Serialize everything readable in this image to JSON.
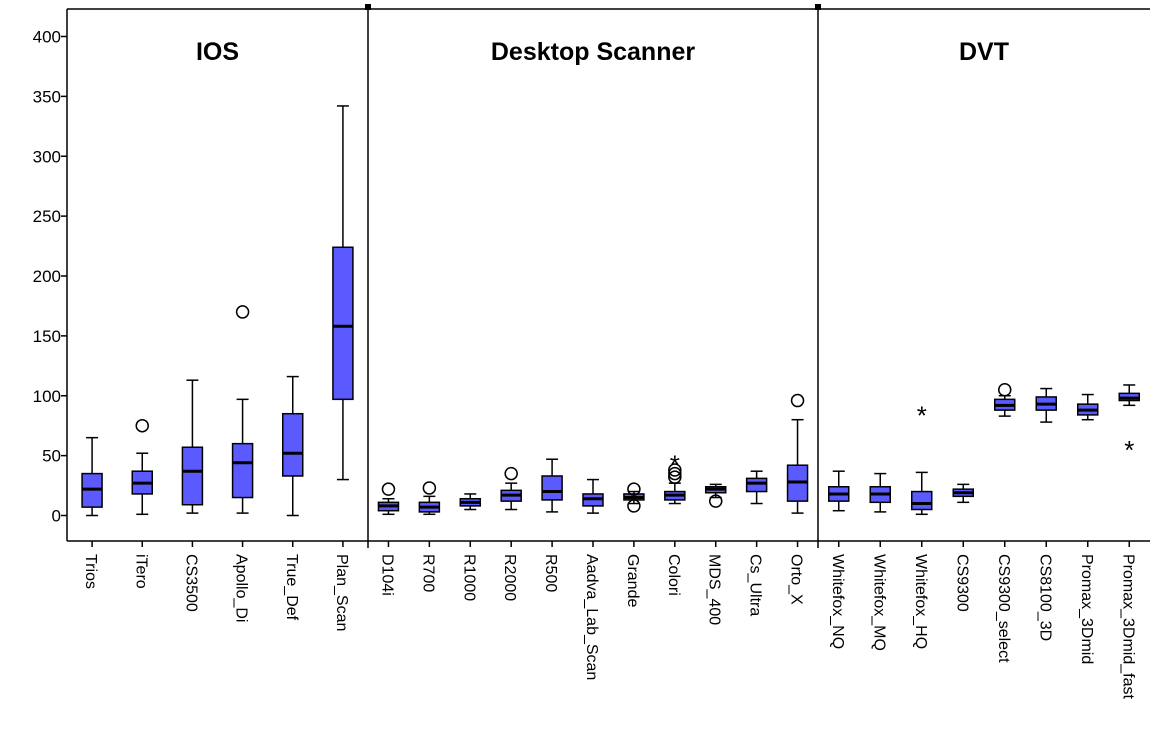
{
  "chart_data": {
    "type": "boxplot",
    "ylim": [
      0,
      400
    ],
    "yticks": [
      0,
      50,
      100,
      150,
      200,
      250,
      300,
      350,
      400
    ],
    "box_color": "#5a5aff",
    "panels": [
      {
        "title": "IOS",
        "boxes": [
          {
            "label": "Trios",
            "min": 0,
            "q1": 7,
            "median": 22,
            "q3": 35,
            "max": 65,
            "outliers": [],
            "extremes": []
          },
          {
            "label": "iTero",
            "min": 1,
            "q1": 18,
            "median": 27,
            "q3": 37,
            "max": 52,
            "outliers": [
              75
            ],
            "extremes": []
          },
          {
            "label": "CS3500",
            "min": 2,
            "q1": 9,
            "median": 37,
            "q3": 57,
            "max": 113,
            "outliers": [],
            "extremes": []
          },
          {
            "label": "Apollo_Di",
            "min": 2,
            "q1": 15,
            "median": 44,
            "q3": 60,
            "max": 97,
            "outliers": [
              170
            ],
            "extremes": []
          },
          {
            "label": "True_Def",
            "min": 0,
            "q1": 33,
            "median": 52,
            "q3": 85,
            "max": 116,
            "outliers": [],
            "extremes": []
          },
          {
            "label": "Plan_Scan",
            "min": 30,
            "q1": 97,
            "median": 158,
            "q3": 224,
            "max": 342,
            "outliers": [],
            "extremes": []
          }
        ]
      },
      {
        "title": "Desktop Scanner",
        "boxes": [
          {
            "label": "D104i",
            "min": 1,
            "q1": 4,
            "median": 8,
            "q3": 11,
            "max": 14,
            "outliers": [
              22
            ],
            "extremes": []
          },
          {
            "label": "R700",
            "min": 1,
            "q1": 3,
            "median": 7,
            "q3": 11,
            "max": 16,
            "outliers": [
              23
            ],
            "extremes": []
          },
          {
            "label": "R1000",
            "min": 5,
            "q1": 8,
            "median": 11,
            "q3": 14,
            "max": 18,
            "outliers": [],
            "extremes": []
          },
          {
            "label": "R2000",
            "min": 5,
            "q1": 12,
            "median": 17,
            "q3": 21,
            "max": 27,
            "outliers": [
              35
            ],
            "extremes": []
          },
          {
            "label": "R500",
            "min": 3,
            "q1": 13,
            "median": 20,
            "q3": 33,
            "max": 47,
            "outliers": [],
            "extremes": []
          },
          {
            "label": "Aadva_Lab_Scan",
            "min": 2,
            "q1": 8,
            "median": 14,
            "q3": 18,
            "max": 30,
            "outliers": [],
            "extremes": []
          },
          {
            "label": "Grande",
            "min": 10,
            "q1": 13,
            "median": 15,
            "q3": 18,
            "max": 20,
            "outliers": [
              8,
              22
            ],
            "extremes": []
          },
          {
            "label": "Colori",
            "min": 10,
            "q1": 13,
            "median": 17,
            "q3": 20,
            "max": 27,
            "outliers": [
              32,
              35,
              38
            ],
            "extremes": [
              45
            ]
          },
          {
            "label": "MDS_400",
            "min": 15,
            "q1": 19,
            "median": 22,
            "q3": 24,
            "max": 26,
            "outliers": [
              12
            ],
            "extremes": []
          },
          {
            "label": "Cs_Ultra",
            "min": 10,
            "q1": 20,
            "median": 27,
            "q3": 31,
            "max": 37,
            "outliers": [],
            "extremes": []
          },
          {
            "label": "Orto_X",
            "min": 2,
            "q1": 12,
            "median": 28,
            "q3": 42,
            "max": 80,
            "outliers": [
              96
            ],
            "extremes": []
          }
        ]
      },
      {
        "title": "DVT",
        "boxes": [
          {
            "label": "Whitefox_NQ",
            "min": 4,
            "q1": 12,
            "median": 18,
            "q3": 24,
            "max": 37,
            "outliers": [],
            "extremes": []
          },
          {
            "label": "Whitefox_MQ",
            "min": 3,
            "q1": 11,
            "median": 18,
            "q3": 24,
            "max": 35,
            "outliers": [],
            "extremes": []
          },
          {
            "label": "Whitefox_HQ",
            "min": 1,
            "q1": 5,
            "median": 10,
            "q3": 20,
            "max": 36,
            "outliers": [],
            "extremes": [
              86
            ]
          },
          {
            "label": "CS9300",
            "min": 11,
            "q1": 16,
            "median": 19,
            "q3": 22,
            "max": 26,
            "outliers": [],
            "extremes": []
          },
          {
            "label": "CS9300_select",
            "min": 83,
            "q1": 88,
            "median": 92,
            "q3": 97,
            "max": 100,
            "outliers": [
              105
            ],
            "extremes": []
          },
          {
            "label": "CS8100_3D",
            "min": 78,
            "q1": 88,
            "median": 93,
            "q3": 99,
            "max": 106,
            "outliers": [],
            "extremes": []
          },
          {
            "label": "Promax_3Dmid",
            "min": 80,
            "q1": 84,
            "median": 88,
            "q3": 93,
            "max": 101,
            "outliers": [],
            "extremes": []
          },
          {
            "label": "Promax_3Dmid_fast",
            "min": 92,
            "q1": 96,
            "median": 98,
            "q3": 102,
            "max": 109,
            "outliers": [],
            "extremes": [
              57
            ]
          }
        ]
      }
    ]
  }
}
